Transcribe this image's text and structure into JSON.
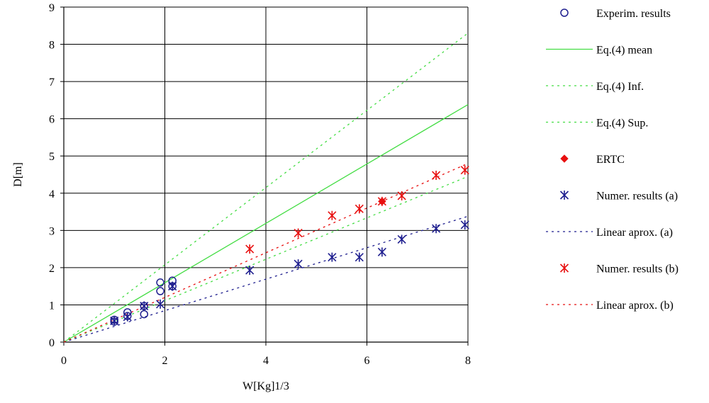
{
  "chart_data": {
    "type": "scatter",
    "xlabel": "W[Kg]1/3",
    "ylabel": "D[m]",
    "xlim": [
      0,
      8
    ],
    "ylim": [
      0,
      9
    ],
    "xticks": [
      "0",
      "2",
      "4",
      "6",
      "8"
    ],
    "yticks": [
      "0",
      "1",
      "2",
      "3",
      "4",
      "5",
      "6",
      "7",
      "8",
      "9"
    ],
    "grid": true,
    "legend_position": "right",
    "series": [
      {
        "name": "Experim. results",
        "kind": "marker",
        "marker": "circle",
        "color": "#1f1f8f",
        "points": [
          [
            1.0,
            0.55
          ],
          [
            1.0,
            0.6
          ],
          [
            1.26,
            0.7
          ],
          [
            1.26,
            0.8
          ],
          [
            1.59,
            0.75
          ],
          [
            1.59,
            0.97
          ],
          [
            1.91,
            1.37
          ],
          [
            1.91,
            1.6
          ],
          [
            2.15,
            1.5
          ],
          [
            2.15,
            1.65
          ]
        ]
      },
      {
        "name": "Eq.(4) mean",
        "kind": "line",
        "dash": "solid",
        "color": "#44dd44",
        "points": [
          [
            0,
            0.0
          ],
          [
            8,
            6.38
          ]
        ]
      },
      {
        "name": "Eq.(4) Inf.",
        "kind": "line",
        "dash": "dashed",
        "color": "#44dd44",
        "points": [
          [
            0,
            0.0
          ],
          [
            8,
            4.45
          ]
        ]
      },
      {
        "name": "Eq.(4) Sup.",
        "kind": "line",
        "dash": "dashed",
        "color": "#44dd44",
        "points": [
          [
            0,
            0.0
          ],
          [
            8,
            8.3
          ]
        ]
      },
      {
        "name": "ERTC",
        "kind": "marker",
        "marker": "diamond",
        "color": "#e81010",
        "points": [
          [
            6.3,
            3.78
          ]
        ]
      },
      {
        "name": "Numer. results (a)",
        "kind": "marker",
        "marker": "star",
        "color": "#1f1f8f",
        "points": [
          [
            1.0,
            0.57
          ],
          [
            1.26,
            0.68
          ],
          [
            1.59,
            0.97
          ],
          [
            1.91,
            1.02
          ],
          [
            2.15,
            1.5
          ],
          [
            3.68,
            1.93
          ],
          [
            4.64,
            2.1
          ],
          [
            5.31,
            2.28
          ],
          [
            5.85,
            2.28
          ],
          [
            6.3,
            2.42
          ],
          [
            6.69,
            2.76
          ],
          [
            7.37,
            3.05
          ],
          [
            7.94,
            3.15
          ]
        ]
      },
      {
        "name": "Linear aprox. (a)",
        "kind": "line",
        "dash": "dashed",
        "color": "#1f1f8f",
        "points": [
          [
            0,
            0.0
          ],
          [
            8,
            3.38
          ]
        ]
      },
      {
        "name": "Numer. results (b)",
        "kind": "marker",
        "marker": "star",
        "color": "#e81010",
        "points": [
          [
            3.68,
            2.5
          ],
          [
            4.64,
            2.93
          ],
          [
            5.31,
            3.4
          ],
          [
            5.85,
            3.58
          ],
          [
            6.3,
            3.78
          ],
          [
            6.69,
            3.93
          ],
          [
            7.37,
            4.48
          ],
          [
            7.94,
            4.62
          ]
        ]
      },
      {
        "name": "Linear aprox. (b)",
        "kind": "line",
        "dash": "dashed",
        "color": "#e81010",
        "points": [
          [
            0,
            0.0
          ],
          [
            8,
            4.8
          ]
        ]
      }
    ]
  }
}
